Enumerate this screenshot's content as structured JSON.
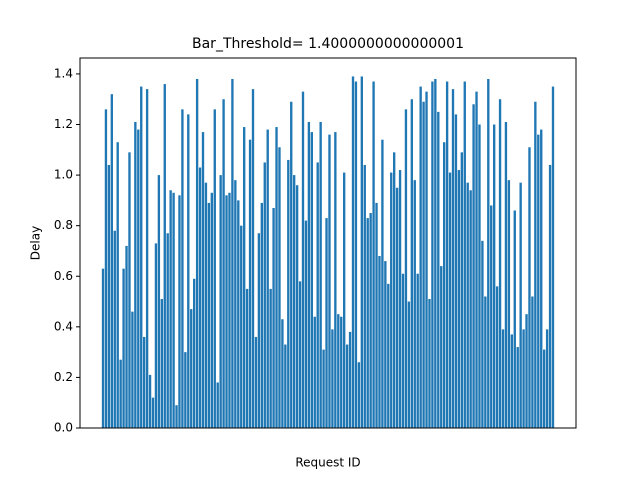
{
  "chart_data": {
    "type": "bar",
    "title": "Bar_Threshold= 1.4000000000000001",
    "xlabel": "Request ID",
    "ylabel": "Delay",
    "color": "#1f77b4",
    "values": [
      0.63,
      1.26,
      1.04,
      1.32,
      0.78,
      1.13,
      0.27,
      0.63,
      0.72,
      1.09,
      0.46,
      1.21,
      1.18,
      1.35,
      0.36,
      1.34,
      0.21,
      0.12,
      0.73,
      1.0,
      0.51,
      1.36,
      0.77,
      0.94,
      0.93,
      0.09,
      0.92,
      1.26,
      0.3,
      1.24,
      0.47,
      0.59,
      1.38,
      1.03,
      1.17,
      0.97,
      0.89,
      0.93,
      1.26,
      0.18,
      1.0,
      1.3,
      0.92,
      0.93,
      1.38,
      0.98,
      0.9,
      0.8,
      1.19,
      0.55,
      1.14,
      1.34,
      0.36,
      0.77,
      0.89,
      1.05,
      1.18,
      0.55,
      0.87,
      1.19,
      1.11,
      0.43,
      0.33,
      1.06,
      1.29,
      1.0,
      0.96,
      0.58,
      1.33,
      0.82,
      1.21,
      1.17,
      0.44,
      1.05,
      1.21,
      0.31,
      0.83,
      1.16,
      0.39,
      1.17,
      0.45,
      0.44,
      1.01,
      0.33,
      0.38,
      1.39,
      1.37,
      0.26,
      1.39,
      1.04,
      0.83,
      0.85,
      1.37,
      0.89,
      0.68,
      1.14,
      0.66,
      0.57,
      1.01,
      1.09,
      0.95,
      1.02,
      0.61,
      1.26,
      0.5,
      1.3,
      0.98,
      0.61,
      1.35,
      1.29,
      1.33,
      0.51,
      1.37,
      1.38,
      1.25,
      0.64,
      1.13,
      1.37,
      1.01,
      1.34,
      1.24,
      1.02,
      1.09,
      1.37,
      0.97,
      0.94,
      1.28,
      1.33,
      1.2,
      0.74,
      0.52,
      1.38,
      0.88,
      1.2,
      0.56,
      1.3,
      0.39,
      1.21,
      0.98,
      0.37,
      0.86,
      0.32,
      0.97,
      0.39,
      0.45,
      1.11,
      0.52,
      1.29,
      1.16,
      1.18,
      0.31,
      0.39,
      1.04,
      1.35
    ],
    "ylim": [
      0,
      1.463
    ],
    "yticks": [
      {
        "value": 0,
        "label": "0.0"
      },
      {
        "value": 0.2,
        "label": "0.2"
      },
      {
        "value": 0.4,
        "label": "0.4"
      },
      {
        "value": 0.6,
        "label": "0.6"
      },
      {
        "value": 0.8,
        "label": "0.8"
      },
      {
        "value": 1.0,
        "label": "1.0"
      },
      {
        "value": 1.2,
        "label": "1.2"
      },
      {
        "value": 1.4,
        "label": "1.4"
      }
    ]
  }
}
